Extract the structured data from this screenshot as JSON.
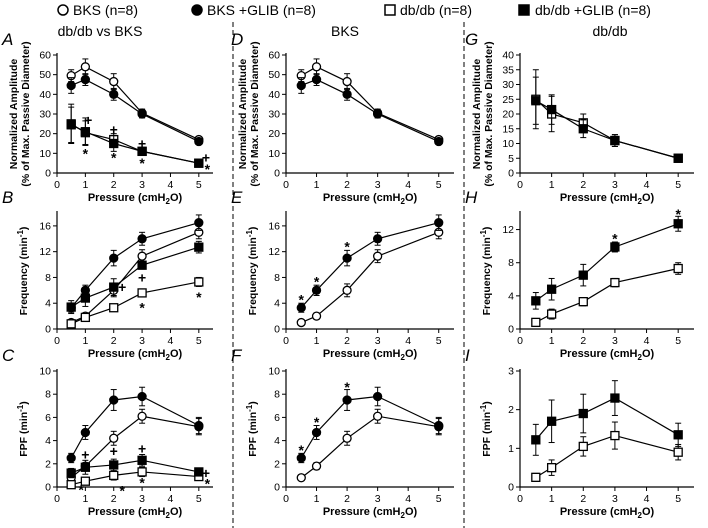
{
  "legend": {
    "items": [
      {
        "label": "BKS (n=8)",
        "marker": "circle-open"
      },
      {
        "label": "BKS +GLIB (n=8)",
        "marker": "circle-filled"
      },
      {
        "label": "db/db (n=8)",
        "marker": "square-open"
      },
      {
        "label": "db/db +GLIB (n=8)",
        "marker": "square-filled"
      }
    ]
  },
  "column_titles": [
    "db/db vs BKS",
    "BKS",
    "db/db"
  ],
  "chart_data": [
    {
      "id": "A",
      "type": "line",
      "letter": "A",
      "xlabel": "Pressure (cmH",
      "xlabel_sub": "2",
      "xlabel_end": "O)",
      "ylabel_lines": [
        "Normalized Amplitude",
        "(% of Max. Passive Diameter)"
      ],
      "ylim": [
        0,
        60
      ],
      "yticks": [
        0,
        10,
        20,
        30,
        40,
        50,
        60
      ],
      "xlim": [
        0,
        5.5
      ],
      "xticks": [
        0,
        1,
        2,
        3,
        4,
        5
      ],
      "x": [
        0.5,
        1,
        2,
        3,
        5
      ],
      "series": [
        {
          "name": "BKS",
          "marker": "circle-open",
          "values": [
            49.5,
            54,
            46.5,
            30.5,
            17
          ],
          "err": [
            3,
            4,
            4,
            2,
            1
          ]
        },
        {
          "name": "BKS +GLIB",
          "marker": "circle-filled",
          "values": [
            44.5,
            47.5,
            40,
            30,
            16
          ],
          "err": [
            4,
            3,
            3,
            2,
            1
          ]
        },
        {
          "name": "db/db",
          "marker": "square-open",
          "values": [
            25,
            20.5,
            17,
            11,
            5
          ],
          "err": [
            10,
            6,
            3,
            2,
            0.5
          ]
        },
        {
          "name": "db/db +GLIB",
          "marker": "square-filled",
          "values": [
            24.5,
            21,
            15,
            11,
            5
          ],
          "err": [
            9,
            7,
            4,
            2,
            0.5
          ]
        }
      ],
      "annotations": [
        {
          "text": "*",
          "x": 1,
          "y": 10
        },
        {
          "text": "+",
          "x": 1.1,
          "y": 27
        },
        {
          "text": "*",
          "x": 2,
          "y": 8
        },
        {
          "text": "+",
          "x": 2,
          "y": 22
        },
        {
          "text": "*",
          "x": 3,
          "y": 5
        },
        {
          "text": "+",
          "x": 3,
          "y": 15
        },
        {
          "text": "+",
          "x": 5.25,
          "y": 8
        },
        {
          "text": "*",
          "x": 5.3,
          "y": 2
        }
      ]
    },
    {
      "id": "D",
      "type": "line",
      "letter": "D",
      "xlabel": "Pressure (cmH",
      "xlabel_sub": "2",
      "xlabel_end": "O)",
      "ylabel_lines": [
        "Normalized Amplitude",
        "(% of Max. Passive Diameter)"
      ],
      "ylim": [
        0,
        60
      ],
      "yticks": [
        0,
        10,
        20,
        30,
        40,
        50,
        60
      ],
      "xlim": [
        0,
        5.5
      ],
      "xticks": [
        0,
        1,
        2,
        3,
        4,
        5
      ],
      "x": [
        0.5,
        1,
        2,
        3,
        5
      ],
      "series": [
        {
          "name": "BKS",
          "marker": "circle-open",
          "values": [
            49.5,
            54,
            46.5,
            30.5,
            17
          ],
          "err": [
            3,
            4,
            4,
            2,
            1
          ]
        },
        {
          "name": "BKS +GLIB",
          "marker": "circle-filled",
          "values": [
            44.5,
            47.5,
            40,
            30,
            16
          ],
          "err": [
            4,
            3,
            3,
            2,
            1
          ]
        }
      ],
      "annotations": []
    },
    {
      "id": "G",
      "type": "line",
      "letter": "G",
      "xlabel": "Pressure (cmH",
      "xlabel_sub": "2",
      "xlabel_end": "O)",
      "ylabel_lines": [
        "Normalized Amplitude",
        "(% of Max. Passive Diameter)"
      ],
      "ylim": [
        0,
        40
      ],
      "yticks": [
        0,
        5,
        10,
        15,
        20,
        25,
        30,
        35,
        40
      ],
      "xlim": [
        0,
        5.5
      ],
      "xticks": [
        0,
        1,
        2,
        3,
        4,
        5
      ],
      "x": [
        0.5,
        1,
        2,
        3,
        5
      ],
      "series": [
        {
          "name": "db/db",
          "marker": "square-open",
          "values": [
            25,
            20,
            17,
            11,
            5
          ],
          "err": [
            10,
            6,
            3,
            2,
            0.5
          ]
        },
        {
          "name": "db/db +GLIB",
          "marker": "square-filled",
          "values": [
            24.5,
            21.5,
            15,
            11,
            5
          ],
          "err": [
            8,
            5,
            3,
            2,
            0.5
          ]
        }
      ],
      "annotations": []
    },
    {
      "id": "B",
      "type": "line",
      "letter": "B",
      "xlabel": "Pressure (cmH",
      "xlabel_sub": "2",
      "xlabel_end": "O)",
      "ylabel_lines": [
        "Frequency (min^-1)"
      ],
      "ylim": [
        0,
        18
      ],
      "yticks": [
        0,
        4,
        8,
        12,
        16
      ],
      "xlim": [
        0,
        5.5
      ],
      "xticks": [
        0,
        1,
        2,
        3,
        4,
        5
      ],
      "x": [
        0.5,
        1,
        2,
        3,
        5
      ],
      "series": [
        {
          "name": "BKS",
          "marker": "circle-open",
          "values": [
            1,
            2,
            6,
            11.3,
            15
          ],
          "err": [
            0.4,
            0.5,
            1,
            1,
            1
          ]
        },
        {
          "name": "BKS +GLIB",
          "marker": "circle-filled",
          "values": [
            3.3,
            6,
            11,
            14,
            16.5
          ],
          "err": [
            0.7,
            0.8,
            1.2,
            1,
            1.2
          ]
        },
        {
          "name": "db/db",
          "marker": "square-open",
          "values": [
            0.8,
            1.8,
            3.3,
            5.6,
            7.3
          ],
          "err": [
            0.4,
            0.6,
            0.5,
            0.5,
            0.7
          ]
        },
        {
          "name": "db/db +GLIB",
          "marker": "square-filled",
          "values": [
            3.4,
            4.8,
            6.5,
            9.9,
            12.7
          ],
          "err": [
            1,
            1.3,
            1.3,
            0.6,
            0.9
          ]
        }
      ],
      "annotations": [
        {
          "text": "+",
          "x": 2.3,
          "y": 6.5
        },
        {
          "text": "+",
          "x": 3,
          "y": 8
        },
        {
          "text": "*",
          "x": 3,
          "y": 3.3
        },
        {
          "text": "*",
          "x": 5,
          "y": 5
        }
      ]
    },
    {
      "id": "E",
      "type": "line",
      "letter": "E",
      "xlabel": "Pressure (cmH",
      "xlabel_sub": "2",
      "xlabel_end": "O)",
      "ylabel_lines": [
        "Frequency (min^-1)"
      ],
      "ylim": [
        0,
        18
      ],
      "yticks": [
        0,
        4,
        8,
        12,
        16
      ],
      "xlim": [
        0,
        5.5
      ],
      "xticks": [
        0,
        1,
        2,
        3,
        4,
        5
      ],
      "x": [
        0.5,
        1,
        2,
        3,
        5
      ],
      "series": [
        {
          "name": "BKS",
          "marker": "circle-open",
          "values": [
            1,
            2,
            6,
            11.3,
            15
          ],
          "err": [
            0.4,
            0.5,
            1,
            1,
            1
          ]
        },
        {
          "name": "BKS +GLIB",
          "marker": "circle-filled",
          "values": [
            3.3,
            6,
            11,
            14,
            16.5
          ],
          "err": [
            0.7,
            0.8,
            1.2,
            1,
            1.2
          ]
        }
      ],
      "annotations": [
        {
          "text": "*",
          "x": 0.5,
          "y": 4.6
        },
        {
          "text": "*",
          "x": 1,
          "y": 7.4
        },
        {
          "text": "*",
          "x": 2,
          "y": 12.8
        }
      ]
    },
    {
      "id": "H",
      "type": "line",
      "letter": "H",
      "xlabel": "Pressure (cmH",
      "xlabel_sub": "2",
      "xlabel_end": "O)",
      "ylabel_lines": [
        "Frequency (min^-1)"
      ],
      "ylim": [
        0,
        14
      ],
      "yticks": [
        0,
        4,
        8,
        12
      ],
      "xlim": [
        0,
        5.5
      ],
      "xticks": [
        0,
        1,
        2,
        3,
        4,
        5
      ],
      "x": [
        0.5,
        1,
        2,
        3,
        5
      ],
      "series": [
        {
          "name": "db/db",
          "marker": "square-open",
          "values": [
            0.8,
            1.8,
            3.3,
            5.6,
            7.3
          ],
          "err": [
            0.4,
            0.6,
            0.5,
            0.5,
            0.7
          ]
        },
        {
          "name": "db/db +GLIB",
          "marker": "square-filled",
          "values": [
            3.4,
            4.8,
            6.5,
            9.9,
            12.7
          ],
          "err": [
            1,
            1.3,
            1.3,
            0.6,
            0.9
          ]
        }
      ],
      "annotations": [
        {
          "text": "*",
          "x": 3,
          "y": 10.9
        },
        {
          "text": "*",
          "x": 5,
          "y": 13.9
        }
      ]
    },
    {
      "id": "C",
      "type": "line",
      "letter": "C",
      "xlabel": "Pressure (cmH",
      "xlabel_sub": "2",
      "xlabel_end": "O)",
      "ylabel_lines": [
        "FPF (min^-1)"
      ],
      "ylim": [
        0,
        10
      ],
      "yticks": [
        0,
        2,
        4,
        6,
        8,
        10
      ],
      "xlim": [
        0,
        5.5
      ],
      "xticks": [
        0,
        1,
        2,
        3,
        4,
        5
      ],
      "x": [
        0.5,
        1,
        2,
        3,
        5
      ],
      "series": [
        {
          "name": "BKS",
          "marker": "circle-open",
          "values": [
            0.8,
            1.8,
            4.2,
            6.1,
            5.2
          ],
          "err": [
            0.2,
            0.3,
            0.6,
            0.6,
            0.7
          ]
        },
        {
          "name": "BKS +GLIB",
          "marker": "circle-filled",
          "values": [
            2.5,
            4.7,
            7.5,
            7.8,
            5.3
          ],
          "err": [
            0.4,
            0.6,
            0.9,
            0.8,
            0.7
          ]
        },
        {
          "name": "db/db",
          "marker": "square-open",
          "values": [
            0.2,
            0.5,
            1.0,
            1.3,
            0.9
          ],
          "err": [
            0.2,
            0.3,
            0.4,
            0.4,
            0.2
          ]
        },
        {
          "name": "db/db +GLIB",
          "marker": "square-filled",
          "values": [
            1.2,
            1.7,
            1.9,
            2.3,
            1.3
          ],
          "err": [
            0.4,
            0.6,
            0.5,
            0.5,
            0.3
          ]
        }
      ],
      "annotations": [
        {
          "text": "*",
          "x": 0.85,
          "y": -0.2
        },
        {
          "text": "+",
          "x": 1,
          "y": 2.8
        },
        {
          "text": "+",
          "x": 2,
          "y": 3.1
        },
        {
          "text": "*",
          "x": 2.3,
          "y": -0.3
        },
        {
          "text": "+",
          "x": 3,
          "y": 3.3
        },
        {
          "text": "*",
          "x": 3,
          "y": 0.4
        },
        {
          "text": "+",
          "x": 5.25,
          "y": 1.2
        },
        {
          "text": "*",
          "x": 5.3,
          "y": 0.3
        }
      ]
    },
    {
      "id": "F",
      "type": "line",
      "letter": "F",
      "xlabel": "Pressure (cmH",
      "xlabel_sub": "2",
      "xlabel_end": "O)",
      "ylabel_lines": [
        "FPF (min^-1)"
      ],
      "ylim": [
        0,
        10
      ],
      "yticks": [
        0,
        2,
        4,
        6,
        8,
        10
      ],
      "xlim": [
        0,
        5.5
      ],
      "xticks": [
        0,
        1,
        2,
        3,
        4,
        5
      ],
      "x": [
        0.5,
        1,
        2,
        3,
        5
      ],
      "series": [
        {
          "name": "BKS",
          "marker": "circle-open",
          "values": [
            0.8,
            1.8,
            4.2,
            6.1,
            5.2
          ],
          "err": [
            0.2,
            0.3,
            0.6,
            0.6,
            0.7
          ]
        },
        {
          "name": "BKS +GLIB",
          "marker": "circle-filled",
          "values": [
            2.5,
            4.7,
            7.5,
            7.8,
            5.3
          ],
          "err": [
            0.4,
            0.6,
            0.9,
            0.8,
            0.7
          ]
        }
      ],
      "annotations": [
        {
          "text": "*",
          "x": 0.5,
          "y": 3.2
        },
        {
          "text": "*",
          "x": 1,
          "y": 5.6
        },
        {
          "text": "*",
          "x": 2,
          "y": 8.6
        }
      ]
    },
    {
      "id": "I",
      "type": "line",
      "letter": "I",
      "xlabel": "Pressure (cmH",
      "xlabel_sub": "2",
      "xlabel_end": "O)",
      "ylabel_lines": [
        "FPF (min^-1)"
      ],
      "ylim": [
        0,
        3
      ],
      "yticks": [
        0,
        1,
        2,
        3
      ],
      "xlim": [
        0,
        5.5
      ],
      "xticks": [
        0,
        1,
        2,
        3,
        4,
        5
      ],
      "x": [
        0.5,
        1,
        2,
        3,
        5
      ],
      "series": [
        {
          "name": "db/db",
          "marker": "square-open",
          "values": [
            0.25,
            0.5,
            1.05,
            1.33,
            0.9
          ],
          "err": [
            0.1,
            0.2,
            0.25,
            0.35,
            0.2
          ]
        },
        {
          "name": "db/db +GLIB",
          "marker": "square-filled",
          "values": [
            1.22,
            1.7,
            1.9,
            2.3,
            1.35
          ],
          "err": [
            0.4,
            0.55,
            0.5,
            0.45,
            0.3
          ]
        }
      ],
      "annotations": []
    }
  ]
}
